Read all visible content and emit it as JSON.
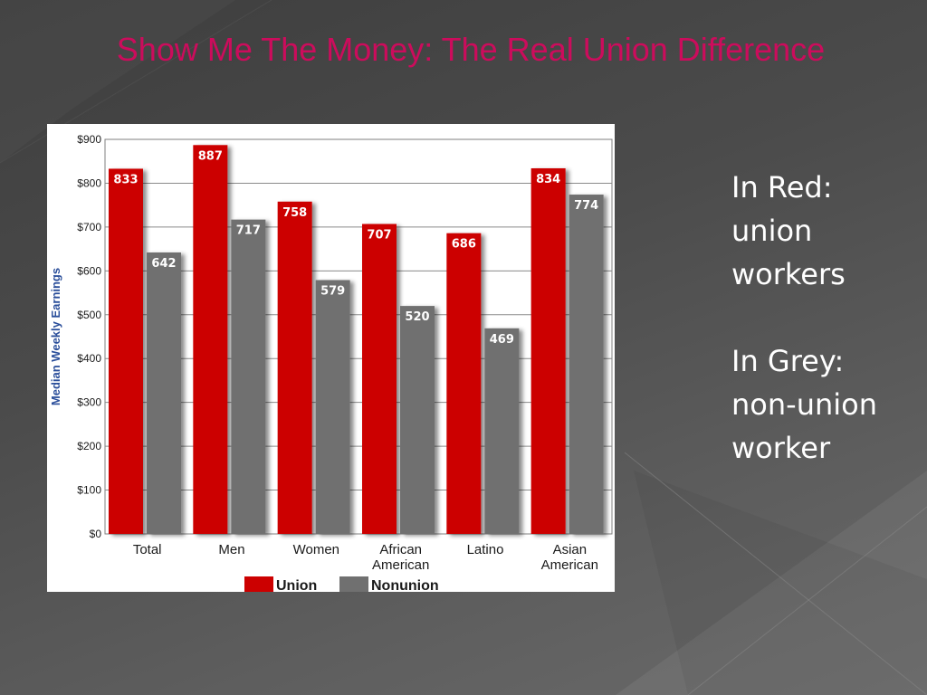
{
  "slide": {
    "title": "Show Me The Money: The Real Union Difference",
    "notes": [
      [
        "In Red:",
        "union",
        "workers"
      ],
      [
        "In Grey:",
        "non-union",
        "worker"
      ]
    ]
  },
  "chart_data": {
    "type": "bar",
    "title": "",
    "xlabel": "",
    "ylabel": "Median Weekly Earnings",
    "ylim": [
      0,
      900
    ],
    "yticks": [
      "$0",
      "$100",
      "$200",
      "$300",
      "$400",
      "$500",
      "$600",
      "$700",
      "$800",
      "$900"
    ],
    "categories": [
      [
        "Total"
      ],
      [
        "Men"
      ],
      [
        "Women"
      ],
      [
        "African",
        "American"
      ],
      [
        "Latino"
      ],
      [
        "Asian",
        "American"
      ]
    ],
    "series": [
      {
        "name": "Union",
        "color": "#cc0000",
        "values": [
          833,
          887,
          758,
          707,
          686,
          834
        ]
      },
      {
        "name": "Nonunion",
        "color": "#707070",
        "values": [
          642,
          717,
          579,
          520,
          469,
          774
        ]
      }
    ],
    "grid": true,
    "legend": "bottom-center"
  }
}
